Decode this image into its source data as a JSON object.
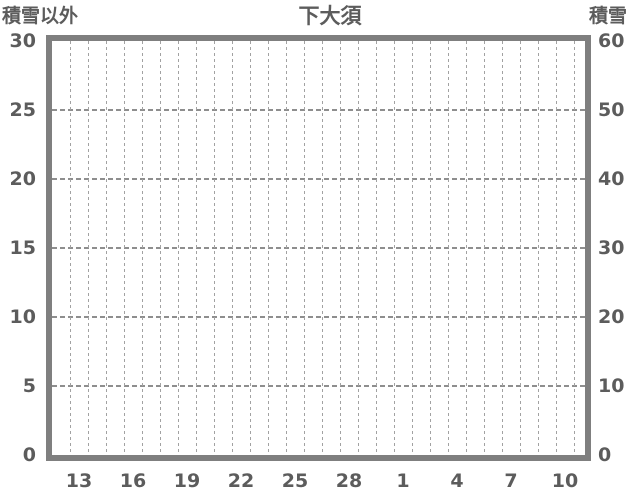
{
  "chart_data": {
    "type": "line",
    "title": "下大須",
    "left_axis": {
      "label": "積雪以外",
      "range": [
        0,
        30
      ],
      "tick_labels": [
        "30",
        "25",
        "20",
        "15",
        "10",
        "5",
        "0"
      ]
    },
    "right_axis": {
      "label": "積雪",
      "range": [
        0,
        60
      ],
      "tick_labels": [
        "60",
        "50",
        "40",
        "30",
        "20",
        "10",
        "0"
      ]
    },
    "x_axis": {
      "tick_labels": [
        "13",
        "16",
        "19",
        "22",
        "25",
        "28",
        "1",
        "4",
        "7",
        "10"
      ],
      "minor_gridline_count": 29,
      "minor_gridlines_per_label_gap": 3
    },
    "series": [],
    "layout": {
      "grid_horizontal": "dashed",
      "grid_vertical": "dashed",
      "legend": "none"
    },
    "colors": {
      "frame": "#7f7f7f",
      "grid_horizontal": "#8e8e8e",
      "grid_vertical": "#a2a2a2",
      "text": "#5c5c5c",
      "background": "#ffffff"
    }
  }
}
